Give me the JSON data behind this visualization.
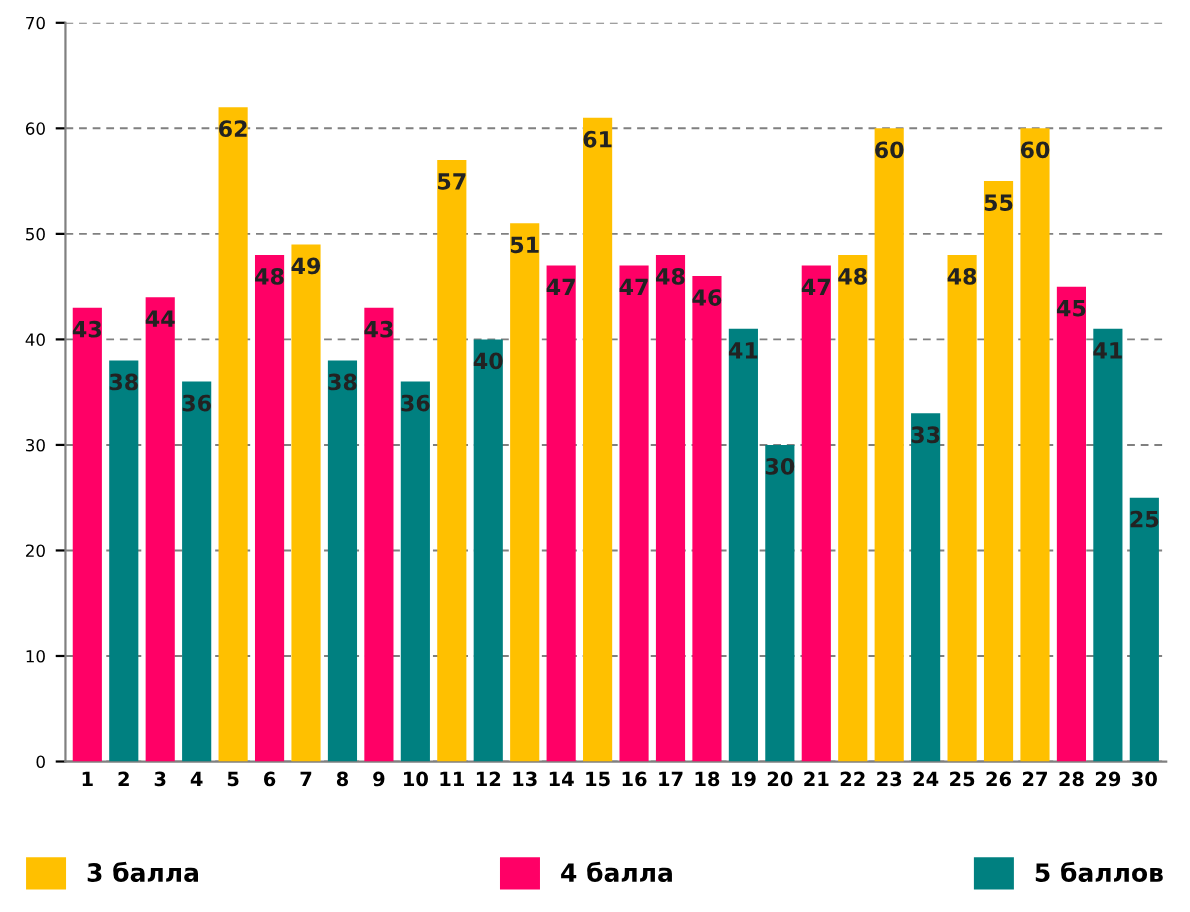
{
  "chart_data": {
    "type": "bar",
    "categories": [
      "1",
      "2",
      "3",
      "4",
      "5",
      "6",
      "7",
      "8",
      "9",
      "10",
      "11",
      "12",
      "13",
      "14",
      "15",
      "16",
      "17",
      "18",
      "19",
      "20",
      "21",
      "22",
      "23",
      "24",
      "25",
      "26",
      "27",
      "28",
      "29",
      "30"
    ],
    "series": [
      {
        "name": "3 балла",
        "color": "#ffc000",
        "values": [
          null,
          null,
          null,
          null,
          62,
          null,
          49,
          null,
          null,
          null,
          57,
          null,
          51,
          null,
          61,
          null,
          null,
          null,
          null,
          null,
          null,
          48,
          60,
          null,
          48,
          55,
          60,
          null,
          null,
          null
        ]
      },
      {
        "name": "4 балла",
        "color": "#ff0066",
        "values": [
          43,
          null,
          44,
          null,
          null,
          48,
          null,
          null,
          43,
          null,
          null,
          null,
          null,
          47,
          null,
          47,
          48,
          46,
          null,
          null,
          47,
          null,
          null,
          null,
          null,
          null,
          null,
          45,
          null,
          null
        ]
      },
      {
        "name": "5 баллов",
        "color": "#008080",
        "values": [
          null,
          38,
          null,
          36,
          null,
          null,
          null,
          38,
          null,
          36,
          null,
          40,
          null,
          null,
          null,
          null,
          null,
          null,
          41,
          30,
          null,
          null,
          null,
          33,
          null,
          null,
          null,
          null,
          41,
          25
        ]
      }
    ],
    "ylim": [
      0,
      70
    ],
    "yticks": [
      0,
      10,
      20,
      30,
      40,
      50,
      60,
      70
    ],
    "grid": "y",
    "legend": "bottom",
    "data_labels": true
  }
}
